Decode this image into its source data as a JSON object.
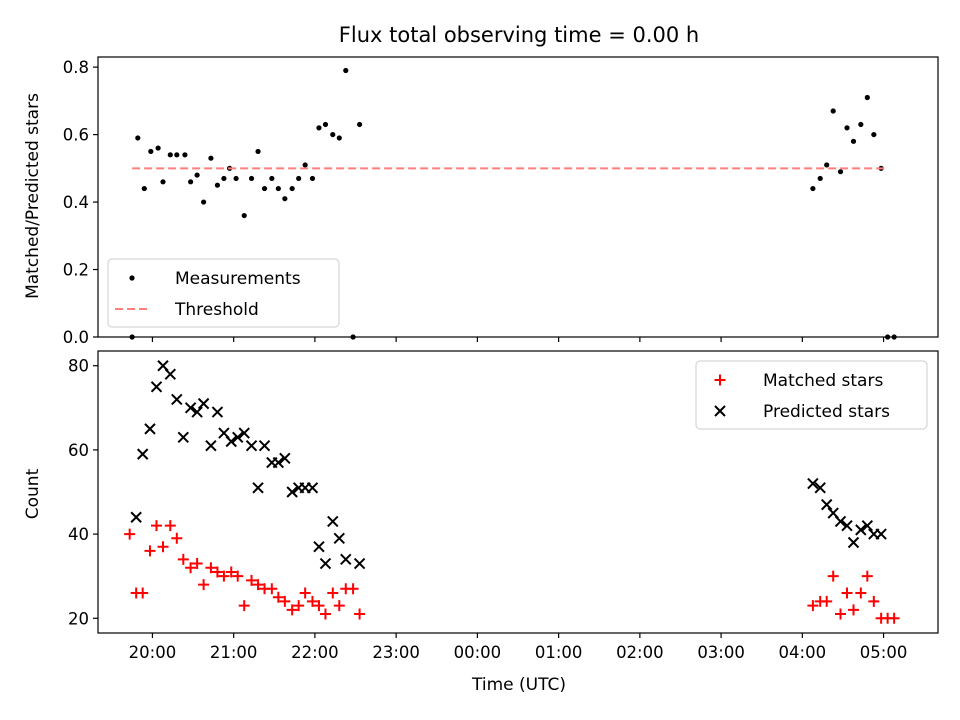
{
  "figure": {
    "title": "Flux total observing time = 0.00 h"
  },
  "chart_data": [
    {
      "type": "scatter",
      "panel": "top",
      "ylabel": "Matched/Predicted stars",
      "ylim": [
        0,
        0.83
      ],
      "yticks": [
        0.0,
        0.2,
        0.4,
        0.6,
        0.8
      ],
      "ytick_labels": [
        "0.0",
        "0.2",
        "0.4",
        "0.6",
        "0.8"
      ],
      "xlim": [
        19.33,
        29.67
      ],
      "x_unit": "hours (UTC), values past 24 are after midnight",
      "legend": {
        "placement": "lower-left"
      },
      "series": [
        {
          "name": "Measurements",
          "kind": "scatter",
          "marker": "dot",
          "color": "#000000",
          "x": [
            19.75,
            19.82,
            19.9,
            19.98,
            20.07,
            20.13,
            20.22,
            20.3,
            20.4,
            20.47,
            20.55,
            20.63,
            20.72,
            20.8,
            20.88,
            20.95,
            21.03,
            21.13,
            21.22,
            21.3,
            21.38,
            21.47,
            21.55,
            21.63,
            21.72,
            21.8,
            21.88,
            21.97,
            22.05,
            22.13,
            22.22,
            22.3,
            22.38,
            22.47,
            22.55,
            28.13,
            28.22,
            28.3,
            28.38,
            28.47,
            28.55,
            28.63,
            28.72,
            28.8,
            28.88,
            28.97,
            29.05,
            29.13
          ],
          "y": [
            0.0,
            0.59,
            0.44,
            0.55,
            0.56,
            0.46,
            0.54,
            0.54,
            0.54,
            0.46,
            0.48,
            0.4,
            0.53,
            0.45,
            0.47,
            0.5,
            0.47,
            0.36,
            0.47,
            0.55,
            0.44,
            0.47,
            0.44,
            0.41,
            0.44,
            0.47,
            0.51,
            0.47,
            0.62,
            0.63,
            0.6,
            0.59,
            0.79,
            0.0,
            0.63,
            0.44,
            0.47,
            0.51,
            0.67,
            0.49,
            0.62,
            0.58,
            0.63,
            0.71,
            0.6,
            0.5,
            0.0,
            0.0
          ]
        },
        {
          "name": "Threshold",
          "kind": "hline",
          "style": "dashed",
          "color": "#ff7f7f",
          "x": [
            19.75,
            29.05
          ],
          "y": [
            0.5,
            0.5
          ]
        }
      ]
    },
    {
      "type": "scatter",
      "panel": "bottom",
      "xlabel": "Time (UTC)",
      "ylabel": "Count",
      "xlim": [
        19.33,
        29.67
      ],
      "ylim": [
        16.5,
        83.5
      ],
      "yticks": [
        20,
        40,
        60,
        80
      ],
      "ytick_labels": [
        "20",
        "40",
        "60",
        "80"
      ],
      "xticks": [
        20,
        21,
        22,
        23,
        24,
        25,
        26,
        27,
        28,
        29
      ],
      "xtick_labels": [
        "20:00",
        "21:00",
        "22:00",
        "23:00",
        "00:00",
        "01:00",
        "02:00",
        "03:00",
        "04:00",
        "05:00"
      ],
      "legend": {
        "placement": "upper-right"
      },
      "series": [
        {
          "name": "Matched stars",
          "marker": "plus",
          "color": "#ff0000",
          "x": [
            19.72,
            19.8,
            19.88,
            19.97,
            20.05,
            20.13,
            20.22,
            20.3,
            20.38,
            20.47,
            20.55,
            20.63,
            20.72,
            20.8,
            20.88,
            20.97,
            21.05,
            21.13,
            21.22,
            21.3,
            21.38,
            21.47,
            21.55,
            21.63,
            21.72,
            21.8,
            21.88,
            21.97,
            22.05,
            22.13,
            22.22,
            22.3,
            22.38,
            22.47,
            22.55,
            28.13,
            28.22,
            28.3,
            28.38,
            28.47,
            28.55,
            28.63,
            28.72,
            28.8,
            28.88,
            28.97,
            29.05,
            29.13
          ],
          "y": [
            40,
            26,
            26,
            36,
            42,
            37,
            42,
            39,
            34,
            32,
            33,
            28,
            32,
            31,
            30,
            31,
            30,
            23,
            29,
            28,
            27,
            27,
            25,
            24,
            22,
            23,
            26,
            24,
            23,
            21,
            26,
            23,
            27,
            27,
            21,
            23,
            24,
            24,
            30,
            21,
            26,
            22,
            26,
            30,
            24,
            20,
            20,
            20
          ]
        },
        {
          "name": "Predicted stars",
          "marker": "x",
          "color": "#000000",
          "x": [
            19.8,
            19.88,
            19.97,
            20.05,
            20.13,
            20.22,
            20.3,
            20.38,
            20.47,
            20.55,
            20.63,
            20.72,
            20.8,
            20.88,
            20.97,
            21.05,
            21.13,
            21.22,
            21.3,
            21.38,
            21.47,
            21.55,
            21.63,
            21.72,
            21.8,
            21.88,
            21.97,
            22.05,
            22.13,
            22.22,
            22.3,
            22.38,
            22.55,
            28.13,
            28.22,
            28.3,
            28.38,
            28.47,
            28.55,
            28.63,
            28.72,
            28.8,
            28.88,
            28.97
          ],
          "y": [
            44,
            59,
            65,
            75,
            80,
            78,
            72,
            63,
            70,
            69,
            71,
            61,
            69,
            64,
            62,
            63,
            64,
            61,
            51,
            61,
            57,
            57,
            58,
            50,
            51,
            51,
            51,
            37,
            33,
            43,
            39,
            34,
            33,
            52,
            51,
            47,
            45,
            43,
            42,
            38,
            41,
            42,
            40,
            40
          ]
        }
      ]
    }
  ]
}
